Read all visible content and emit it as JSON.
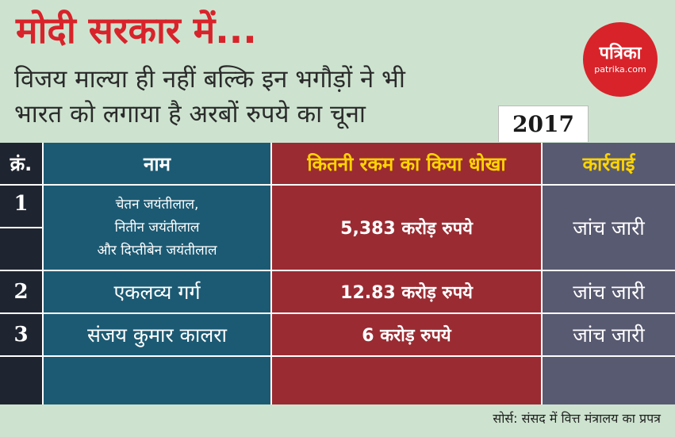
{
  "header": {
    "title": "मोदी सरकार में...",
    "subtitle_line1": "विजय माल्या ही नहीं बल्कि इन भगौड़ों ने भी",
    "subtitle_line2": "भारत को लगाया है अरबों रुपये का चूना",
    "year": "2017"
  },
  "logo": {
    "name": "पत्रिका",
    "site": "patrika.com",
    "color": "#d8232a"
  },
  "table": {
    "headers": {
      "serial": "क्रं.",
      "name": "नाम",
      "amount": "कितनी रकम का किया धोखा",
      "action": "कार्रवाई"
    },
    "rows": [
      {
        "serial": "1",
        "name_lines": [
          "चेतन जयंतीलाल,",
          "नितीन जयंतीलाल",
          "और दिप्तीबेन जयंतीलाल"
        ],
        "amount": "5,383 करोड़ रुपये",
        "action": "जांच जारी"
      },
      {
        "serial": "2",
        "name": "एकलव्य गर्ग",
        "amount": "12.83 करोड़ रुपये",
        "action": "जांच जारी"
      },
      {
        "serial": "3",
        "name": "संजय कुमार कालरा",
        "amount": "6 करोड़ रुपये",
        "action": "जांच जारी"
      }
    ]
  },
  "footer": {
    "source": "सोर्स: संसद में वित्त मंत्रालय का प्रपत्र"
  },
  "colors": {
    "background": "#cde3cf",
    "title_red": "#d8232a",
    "teal": "#1c5a73",
    "red": "#9a2b32",
    "gray": "#585a71",
    "dark": "#1f2530",
    "header_yellow": "#ffd400"
  }
}
